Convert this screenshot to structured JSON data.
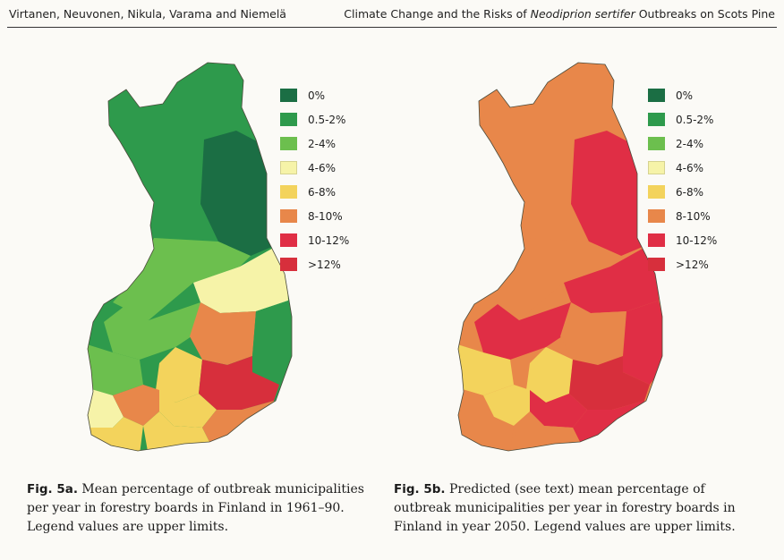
{
  "header": {
    "authors": "Virtanen, Neuvonen, Nikula, Varama and Niemelä",
    "title_pre": "Climate Change and the Risks of ",
    "title_species": "Neodiprion sertifer",
    "title_post": " Outbreaks on Scots Pine"
  },
  "legend": [
    {
      "label": "0%",
      "color": "#1b6e44"
    },
    {
      "label": "0.5-2%",
      "color": "#2e9a4c"
    },
    {
      "label": "2-4%",
      "color": "#6cbf4e"
    },
    {
      "label": "4-6%",
      "color": "#f6f3a8"
    },
    {
      "label": "6-8%",
      "color": "#f3d35c"
    },
    {
      "label": "8-10%",
      "color": "#e8874a"
    },
    {
      "label": "10-12%",
      "color": "#e02e45"
    },
    {
      "label": ">12%",
      "color": "#d72f3c"
    }
  ],
  "figure_a": {
    "label": "Fig. 5a.",
    "caption": " Mean percentage of outbreak municipalities per year in forestry boards in Finland in 1961–90. Legend values are upper limits."
  },
  "figure_b": {
    "label": "Fig. 5b.",
    "caption": " Predicted (see text) mean percentage of outbreak municipalities per year in forestry boards in Finland in year 2050. Legend values are upper limits."
  }
}
